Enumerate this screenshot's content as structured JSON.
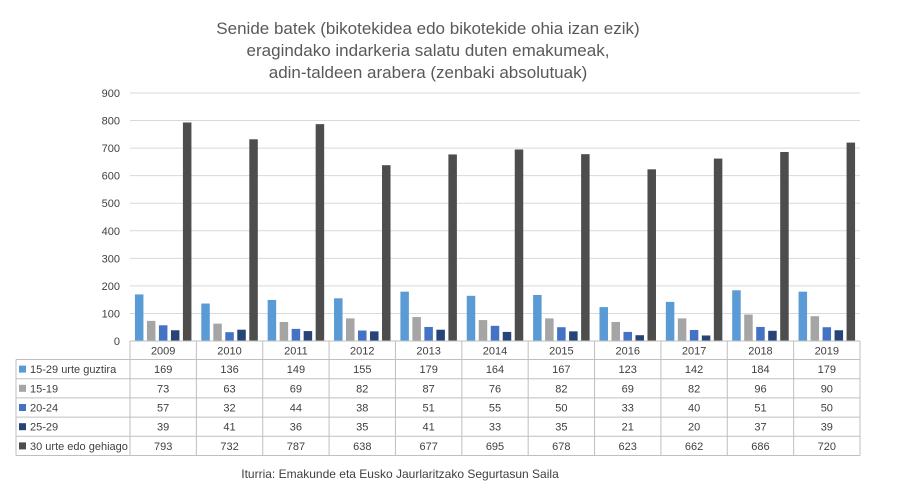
{
  "chart_data": {
    "type": "bar",
    "title_lines": [
      "Senide batek (bikotekidea edo bikotekide ohia izan ezik)",
      "eragindako indarkeria salatu duten emakumeak,",
      "adin-taldeen arabera (zenbaki absolutuak)"
    ],
    "categories": [
      "2009",
      "2010",
      "2011",
      "2012",
      "2013",
      "2014",
      "2015",
      "2016",
      "2017",
      "2018",
      "2019"
    ],
    "ylim": [
      0,
      900
    ],
    "yticks": [
      0,
      100,
      200,
      300,
      400,
      500,
      600,
      700,
      800,
      900
    ],
    "grid": true,
    "legend": "data-table-below",
    "series": [
      {
        "name": "15-29 urte guztira",
        "color": "#5b9bd5",
        "values": [
          169,
          136,
          149,
          155,
          179,
          164,
          167,
          123,
          142,
          184,
          179
        ]
      },
      {
        "name": "15-19",
        "color": "#a5a5a5",
        "values": [
          73,
          63,
          69,
          82,
          87,
          76,
          82,
          69,
          82,
          96,
          90
        ]
      },
      {
        "name": "20-24",
        "color": "#4472c4",
        "values": [
          57,
          32,
          44,
          38,
          51,
          55,
          50,
          33,
          40,
          51,
          50
        ]
      },
      {
        "name": "25-29",
        "color": "#264478",
        "values": [
          39,
          41,
          36,
          35,
          41,
          33,
          35,
          21,
          20,
          37,
          39
        ]
      },
      {
        "name": "30 urte edo gehiago",
        "color": "#4d4d4d",
        "values": [
          793,
          732,
          787,
          638,
          677,
          695,
          678,
          623,
          662,
          686,
          720
        ]
      }
    ],
    "source": "Iturria: Emakunde eta Eusko Jaurlaritzako Segurtasun Saila"
  }
}
